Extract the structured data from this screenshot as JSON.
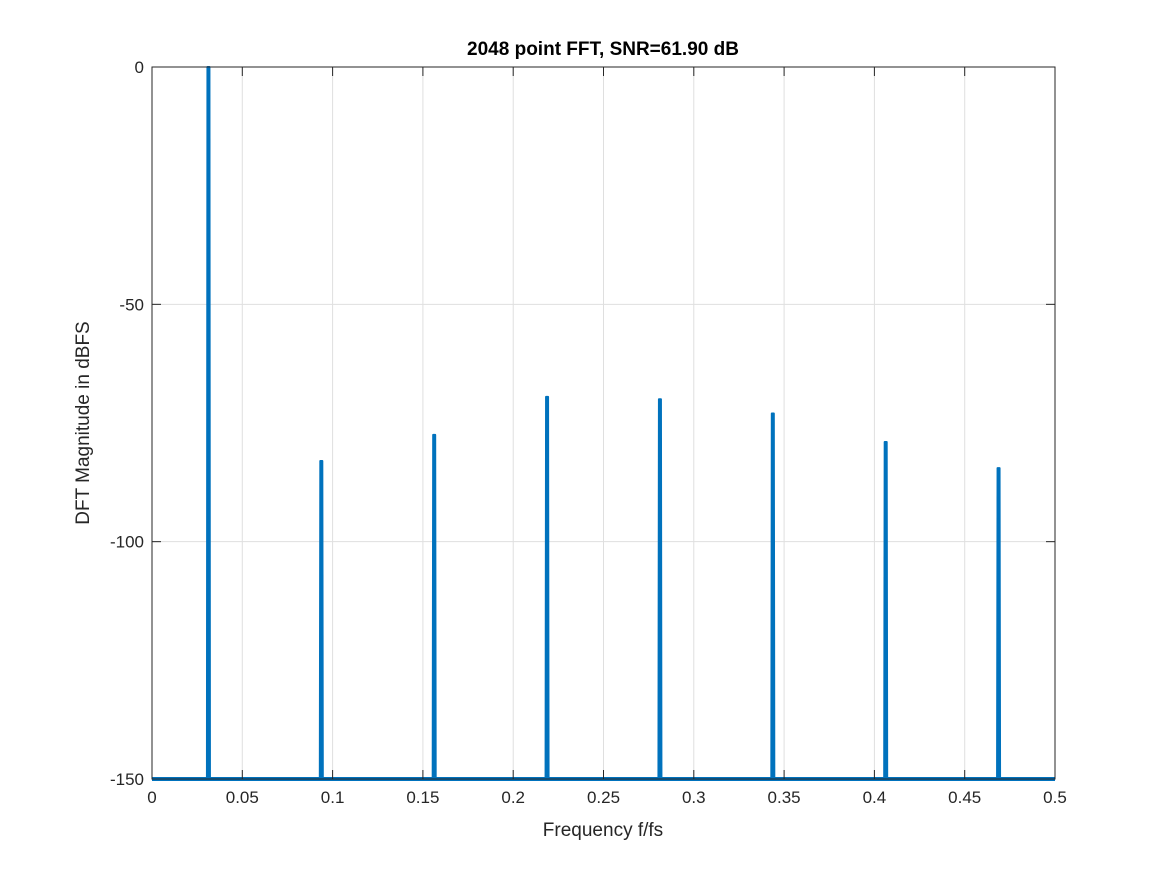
{
  "chart_data": {
    "type": "line",
    "title": "2048 point FFT, SNR=61.90 dB",
    "xlabel": "Frequency f/fs",
    "ylabel": "DFT Magnitude in dBFS",
    "xlim": [
      0,
      0.5
    ],
    "ylim": [
      -150,
      0
    ],
    "xticks": [
      0,
      0.05,
      0.1,
      0.15,
      0.2,
      0.25,
      0.3,
      0.35,
      0.4,
      0.45,
      0.5
    ],
    "xtick_labels": [
      "0",
      "0.05",
      "0.1",
      "0.15",
      "0.2",
      "0.25",
      "0.3",
      "0.35",
      "0.4",
      "0.45",
      "0.5"
    ],
    "yticks": [
      -150,
      -100,
      -50,
      0
    ],
    "ytick_labels": [
      "-150",
      "-100",
      "-50",
      "0"
    ],
    "grid": true,
    "floor_db": -150,
    "series": [
      {
        "color": "#0072bd",
        "peaks": [
          {
            "x": 0.03125,
            "y": 0
          },
          {
            "x": 0.09375,
            "y": -83
          },
          {
            "x": 0.15625,
            "y": -77.5
          },
          {
            "x": 0.21875,
            "y": -69.5
          },
          {
            "x": 0.28125,
            "y": -70
          },
          {
            "x": 0.34375,
            "y": -73
          },
          {
            "x": 0.40625,
            "y": -79
          },
          {
            "x": 0.46875,
            "y": -84.5
          }
        ]
      }
    ]
  }
}
